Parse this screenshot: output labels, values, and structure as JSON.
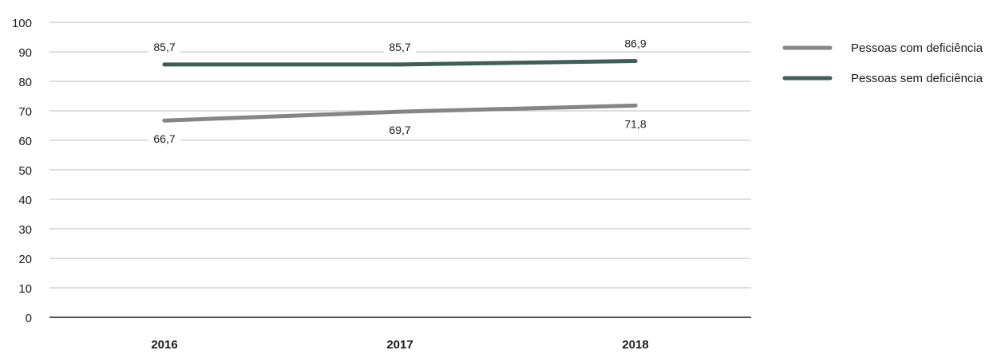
{
  "chart_data": {
    "type": "line",
    "title": "",
    "xlabel": "",
    "ylabel": "",
    "categories": [
      "2016",
      "2017",
      "2018"
    ],
    "ylim": [
      0,
      100
    ],
    "yticks": [
      0,
      10,
      20,
      30,
      40,
      50,
      60,
      70,
      80,
      90,
      100
    ],
    "grid": true,
    "legend_position": "right",
    "series": [
      {
        "name": "Pessoas com deficiência",
        "values": [
          66.7,
          69.7,
          71.8
        ],
        "labels": [
          "66,7",
          "69,7",
          "71,8"
        ],
        "color": "#858585",
        "label_placement": "below"
      },
      {
        "name": "Pessoas sem deficiência",
        "values": [
          85.7,
          85.7,
          86.9
        ],
        "labels": [
          "85,7",
          "85,7",
          "86,9"
        ],
        "color": "#3e5e58",
        "label_placement": "above"
      }
    ]
  }
}
